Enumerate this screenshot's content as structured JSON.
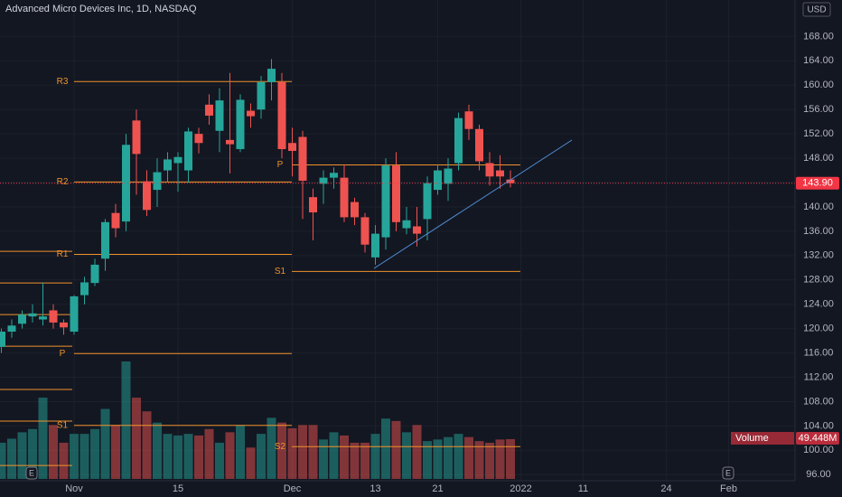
{
  "chart_data": {
    "type": "candlestick",
    "title": "Advanced Micro Devices Inc, 1D, NASDAQ",
    "currency": "USD",
    "categories": [
      null,
      null,
      null,
      null,
      null,
      null,
      null,
      "Nov",
      null,
      null,
      null,
      null,
      null,
      null,
      null,
      null,
      null,
      "15",
      null,
      null,
      null,
      null,
      null,
      null,
      null,
      null,
      null,
      null,
      "Dec",
      null,
      null,
      null,
      null,
      null,
      null,
      null,
      "13",
      null,
      null,
      null,
      null,
      null,
      "21",
      null,
      null,
      null,
      null,
      null,
      null,
      null,
      "2022",
      null,
      null,
      null,
      null,
      null,
      "11",
      null,
      null,
      null,
      null,
      null,
      null,
      null,
      "24",
      null,
      null,
      null,
      null,
      null,
      "Feb"
    ],
    "open": [
      117,
      119.5,
      120.8,
      122,
      121.5,
      123,
      121,
      119.5,
      125.5,
      127.5,
      131.5,
      139,
      137.6,
      154.2,
      144.2,
      142.8,
      146,
      147.2,
      146,
      152,
      156.8,
      152.5,
      151,
      149.5,
      155.8,
      156,
      160.5,
      160.5,
      150.5,
      151.5,
      141.6,
      143.8,
      144.8,
      144.8,
      140.8,
      138.3,
      131.7,
      135,
      146.8,
      136.5,
      136.8,
      138,
      142.8,
      143.8,
      147.2,
      155.7,
      152.8,
      147.2,
      146,
      144.5,
      null,
      null,
      null,
      null,
      null,
      null,
      null,
      null,
      null,
      null,
      null,
      null,
      null,
      null,
      null,
      null,
      null,
      null,
      null,
      null,
      null
    ],
    "high": [
      120,
      121.5,
      123,
      124,
      127.6,
      124,
      121.5,
      125.5,
      128.5,
      131.5,
      138,
      140.5,
      152,
      156,
      146,
      148,
      149,
      149,
      153,
      153,
      158.5,
      159.5,
      162,
      158.5,
      157,
      161.5,
      164.3,
      162,
      153,
      152.5,
      143,
      146,
      146.5,
      147,
      141.5,
      139,
      137,
      148,
      149,
      140,
      140,
      145,
      147,
      148,
      155.5,
      156.8,
      153.5,
      149,
      148.5,
      146,
      null,
      null,
      null,
      null,
      null,
      null,
      null,
      null,
      null,
      null,
      null,
      null,
      null,
      null,
      null,
      null,
      null,
      null,
      null,
      null,
      null
    ],
    "low": [
      116,
      118.5,
      120,
      121,
      120.5,
      120,
      119,
      119,
      124,
      127,
      129.5,
      135,
      136,
      142,
      138.5,
      140,
      144,
      142.5,
      144,
      148.8,
      153.5,
      149,
      145.5,
      149,
      153,
      154.5,
      157.5,
      148,
      145,
      138,
      134.5,
      140.5,
      143,
      137.5,
      137,
      132.5,
      130.5,
      133,
      136,
      135.5,
      133.5,
      134.5,
      142,
      141,
      146,
      151,
      146,
      143.5,
      143,
      143.2,
      null,
      null,
      null,
      null,
      null,
      null,
      null,
      null,
      null,
      null,
      null,
      null,
      null,
      null,
      null,
      null,
      null,
      null,
      null,
      null,
      null
    ],
    "close": [
      119.5,
      120.5,
      122.3,
      122.5,
      122,
      121,
      120.2,
      125.3,
      127.6,
      130.5,
      137.5,
      136.5,
      150.2,
      148.7,
      139.5,
      145.7,
      147.8,
      148.2,
      152.4,
      150.5,
      155,
      157.5,
      150.3,
      157.6,
      154.9,
      160.5,
      162.7,
      149.5,
      149.2,
      144.3,
      139.1,
      144.8,
      145.6,
      138.3,
      138.3,
      133.8,
      135.6,
      146.8,
      137.5,
      137.8,
      135.6,
      143.9,
      146,
      146.3,
      154.6,
      152.8,
      147.5,
      145,
      145,
      143.9,
      null,
      null,
      null,
      null,
      null,
      null,
      null,
      null,
      null,
      null,
      null,
      null,
      null,
      null,
      null,
      null,
      null,
      null,
      null,
      null,
      null
    ],
    "volume": {
      "name": "Volume",
      "values": [
        45,
        50,
        58,
        62,
        101,
        67,
        45,
        56,
        56,
        62,
        87,
        67,
        146,
        101,
        84,
        70,
        56,
        54,
        56,
        54,
        62,
        45,
        58,
        67,
        39,
        56,
        76,
        70,
        63,
        67,
        67,
        49,
        58,
        54,
        45,
        45,
        56,
        75,
        72,
        58,
        67,
        47,
        49,
        52,
        56,
        52,
        47,
        45,
        49,
        49.448,
        null,
        null,
        null,
        null,
        null,
        null,
        null,
        null,
        null,
        null,
        null,
        null,
        null,
        null,
        null,
        null,
        null,
        null,
        null,
        null,
        null
      ],
      "value_labels": [
        null,
        null,
        null,
        null,
        null,
        null,
        null,
        null,
        null,
        null,
        null,
        null,
        null,
        null,
        null,
        null,
        null,
        null,
        null,
        null,
        null,
        null,
        null,
        null,
        null,
        null,
        null,
        null,
        null,
        null,
        null,
        null,
        null,
        null,
        null,
        null,
        null,
        null,
        null,
        null,
        null,
        null,
        null,
        null,
        null,
        null,
        null,
        null,
        null,
        "49.448M",
        null,
        null,
        null,
        null,
        null,
        null,
        null,
        null,
        null,
        null,
        null,
        null,
        null,
        null,
        null,
        null,
        null,
        null,
        null,
        null,
        null
      ]
    },
    "last_price": {
      "value": 143.9,
      "label": "143.90"
    },
    "up_color": "#26a69a",
    "down_color": "#ef5350",
    "pivot_color": "#f0922b",
    "pivots": [
      {
        "levels": [
          132.7,
          127.5,
          122.3,
          117.1,
          110,
          104.8,
          97.5
        ]
      },
      {
        "labels": [
          "R3",
          "R2",
          "R1",
          "P",
          "S1"
        ],
        "levels": [
          160.6,
          144.1,
          132.2,
          115.9,
          104.1
        ]
      },
      {
        "labels": [
          "P",
          "S1",
          "S2"
        ],
        "levels": [
          146.9,
          129.4,
          100.6
        ]
      }
    ],
    "events": [
      "E",
      "E"
    ],
    "ylim": [
      95,
      174
    ],
    "yticks": [
      {
        "value": 96,
        "label": "96.00"
      },
      {
        "value": 100,
        "label": "100.00"
      },
      {
        "value": 104,
        "label": "104.00"
      },
      {
        "value": 108,
        "label": "108.00"
      },
      {
        "value": 112,
        "label": "112.00"
      },
      {
        "value": 116,
        "label": "116.00"
      },
      {
        "value": 120,
        "label": "120.00"
      },
      {
        "value": 124,
        "label": "124.00"
      },
      {
        "value": 128,
        "label": "128.00"
      },
      {
        "value": 132,
        "label": "132.00"
      },
      {
        "value": 136,
        "label": "136.00"
      },
      {
        "value": 140,
        "label": "140.00"
      },
      {
        "value": 144,
        "label": "144.00"
      },
      {
        "value": 148,
        "label": "148.00"
      },
      {
        "value": 152,
        "label": "152.00"
      },
      {
        "value": 156,
        "label": "156.00"
      },
      {
        "value": 160,
        "label": "160.00"
      },
      {
        "value": 164,
        "label": "164.00"
      },
      {
        "value": 168,
        "label": "168.00"
      }
    ],
    "grid": true
  }
}
